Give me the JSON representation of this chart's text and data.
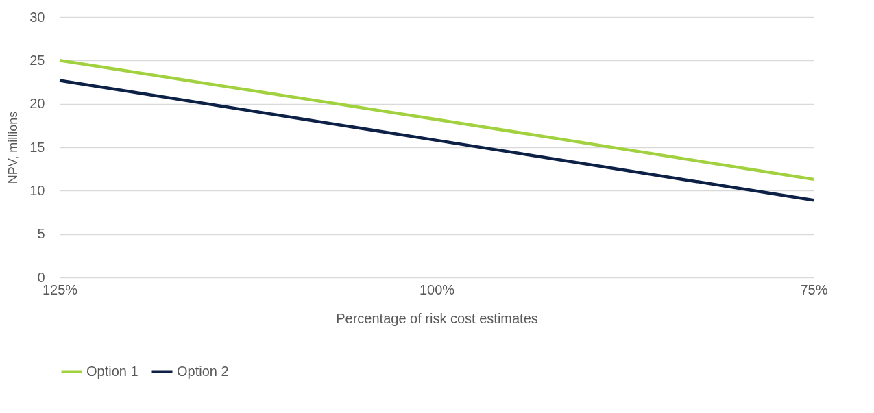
{
  "chart_data": {
    "type": "line",
    "xlabel": "Percentage of risk cost estimates",
    "ylabel": "NPV, millions",
    "x": [
      125,
      100,
      75
    ],
    "series": [
      {
        "name": "Option 1",
        "color": "#a2d140",
        "values": [
          25,
          18.2,
          11.3
        ]
      },
      {
        "name": "Option 2",
        "color": "#0d2147",
        "values": [
          22.7,
          15.8,
          8.9
        ]
      }
    ],
    "xlim": [
      125,
      75
    ],
    "xticks": [
      {
        "value": 125,
        "label": "125%"
      },
      {
        "value": 100,
        "label": "100%"
      },
      {
        "value": 75,
        "label": "75%"
      }
    ],
    "ylim": [
      0,
      30
    ],
    "yticks": [
      0,
      5,
      10,
      15,
      20,
      25,
      30
    ],
    "grid": "y",
    "legend": "bottom",
    "marker": "none",
    "line_style": "solid"
  }
}
